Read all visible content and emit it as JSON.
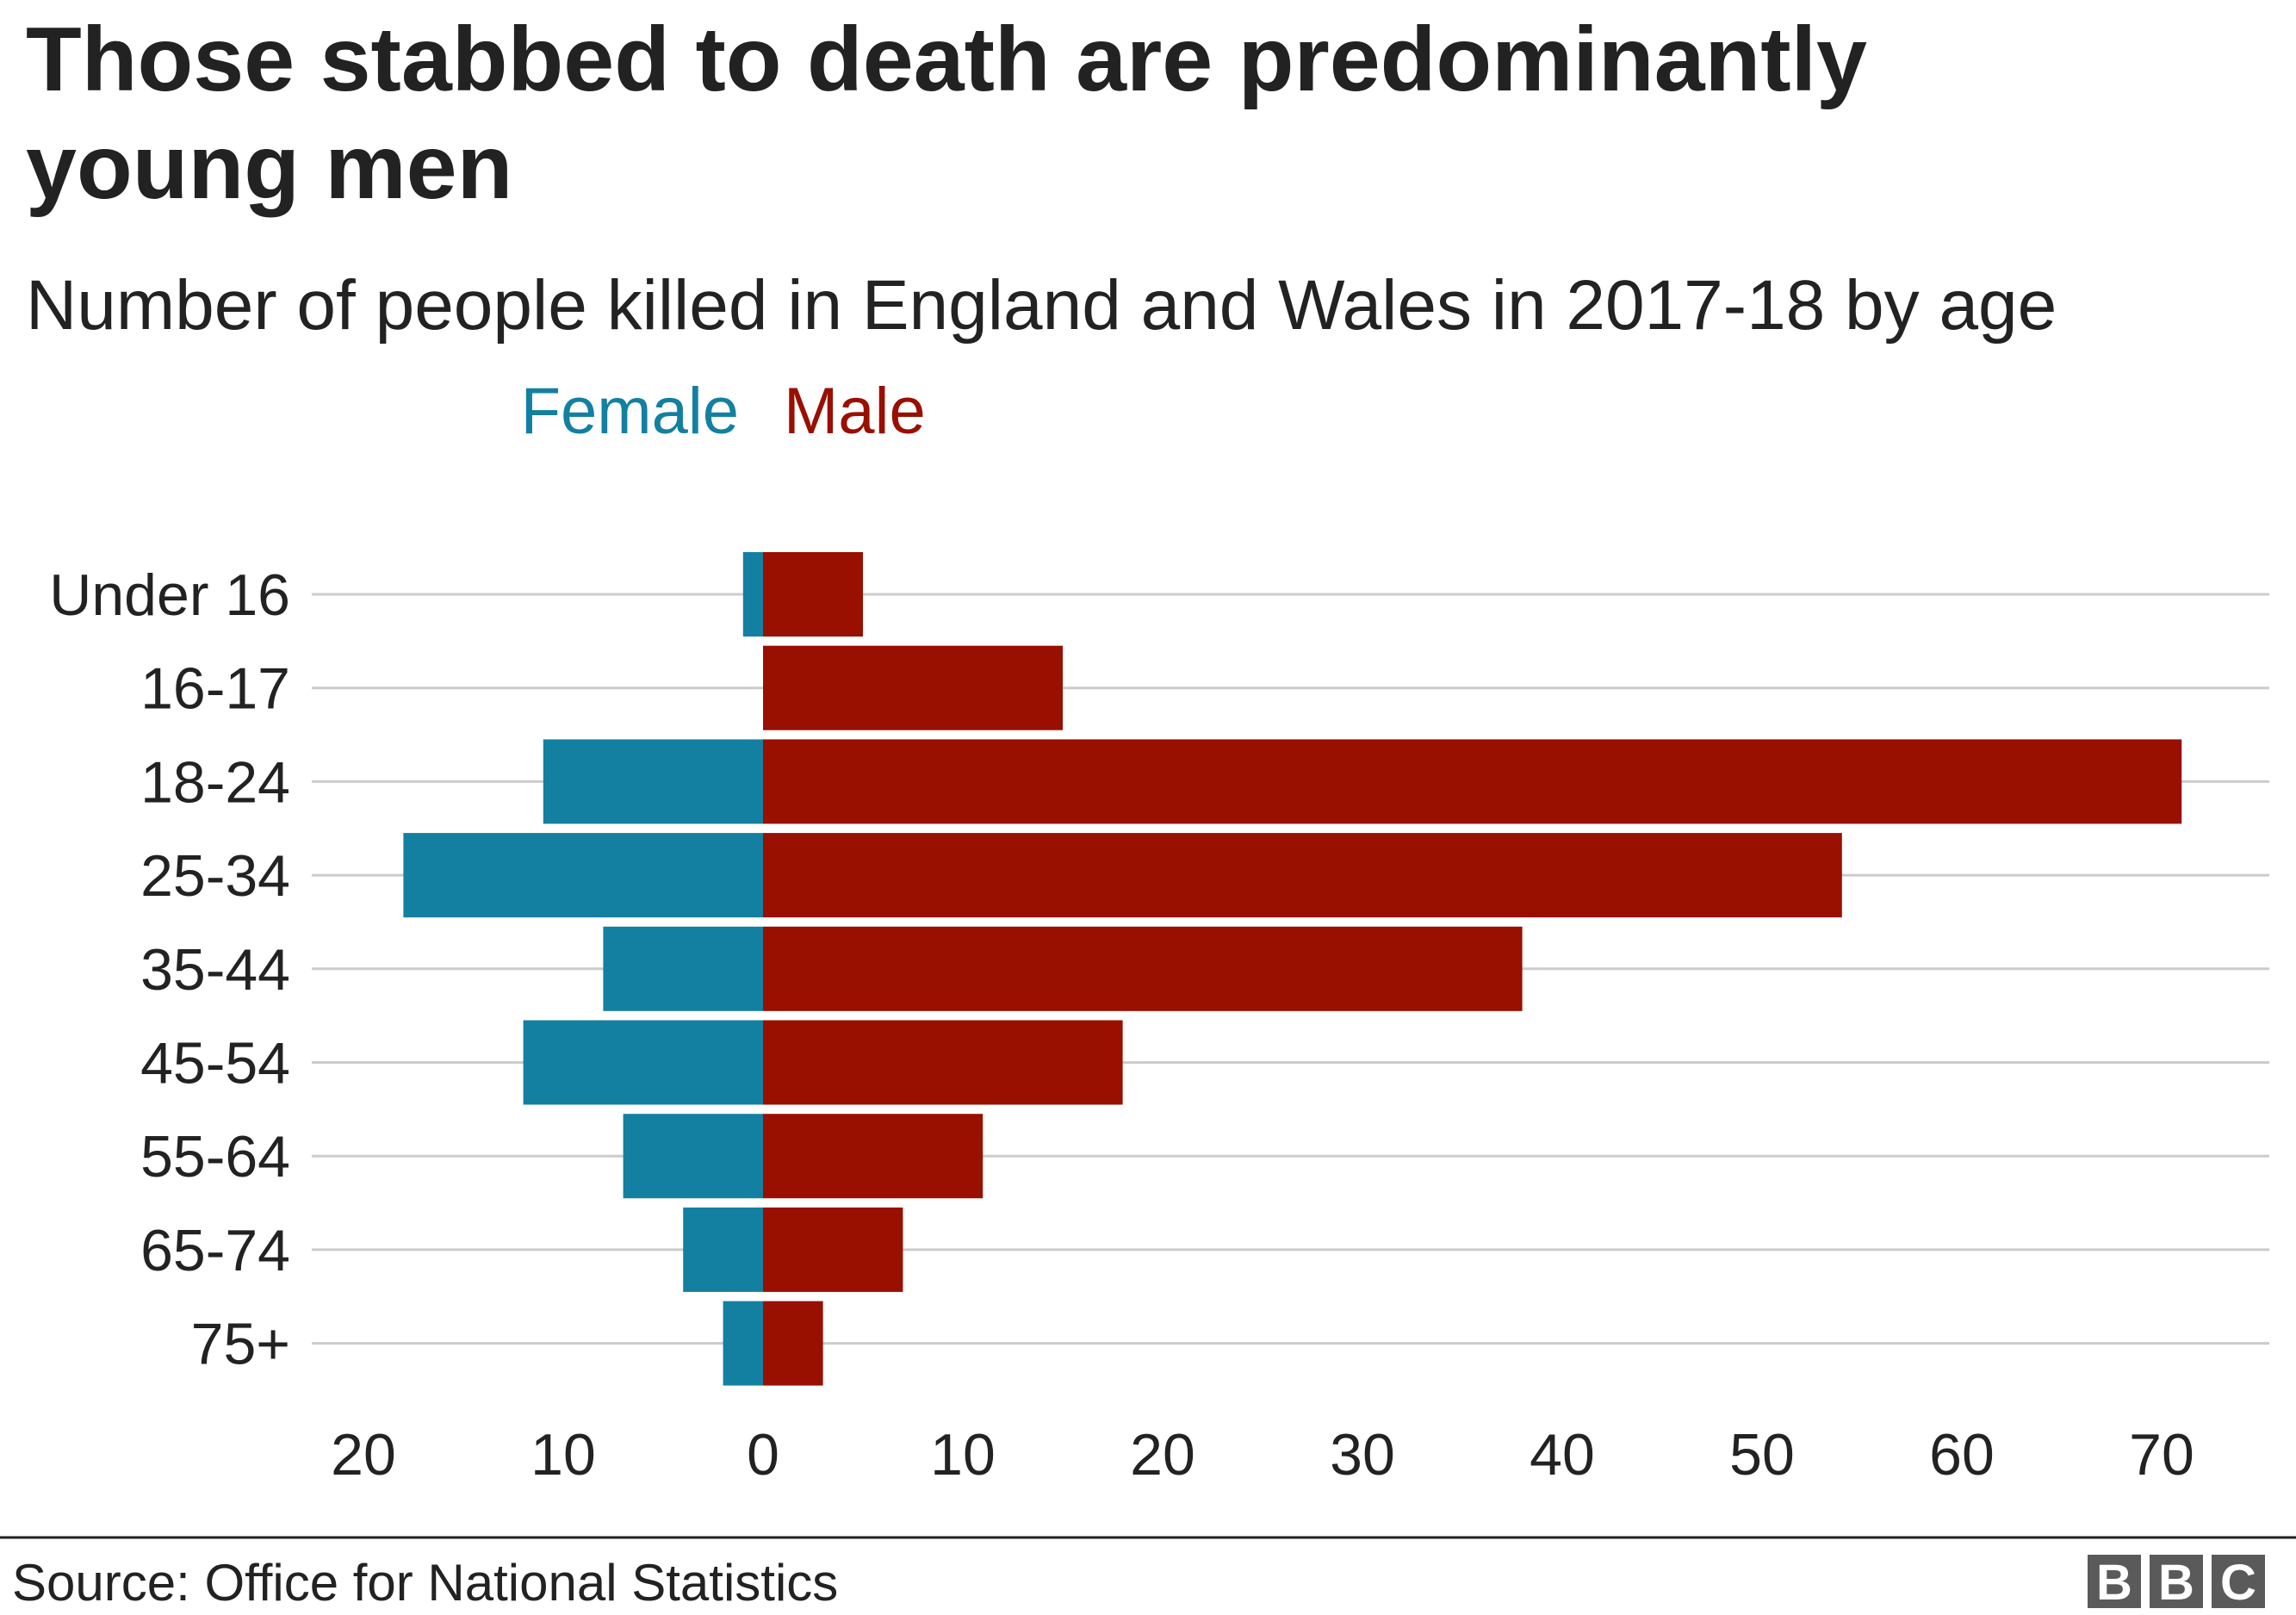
{
  "chart_data": {
    "type": "bar",
    "orientation": "horizontal",
    "layout": "population-pyramid",
    "title": "Those stabbed to death are predominantly young men",
    "title_lines": [
      "Those stabbed to death are predominantly",
      "young men"
    ],
    "subtitle": "Number of people killed in England and Wales in 2017-18 by age",
    "categories": [
      "Under 16",
      "16-17",
      "18-24",
      "25-34",
      "35-44",
      "45-54",
      "55-64",
      "65-74",
      "75+"
    ],
    "series": [
      {
        "name": "Female",
        "color": "#1380a1",
        "values": [
          1,
          0,
          11,
          18,
          8,
          12,
          7,
          4,
          2
        ]
      },
      {
        "name": "Male",
        "color": "#990f00",
        "values": [
          5,
          15,
          71,
          54,
          38,
          18,
          11,
          7,
          3
        ]
      }
    ],
    "xlim": [
      -20,
      75
    ],
    "x_ticks": [
      -20,
      -10,
      0,
      10,
      20,
      30,
      40,
      50,
      60,
      70
    ],
    "x_tick_labels": [
      "20",
      "10",
      "0",
      "10",
      "20",
      "30",
      "40",
      "50",
      "60",
      "70"
    ],
    "grid": true,
    "legend_position": "top"
  },
  "footer": {
    "source": "Source: Office for National Statistics",
    "logo": "BBC"
  }
}
